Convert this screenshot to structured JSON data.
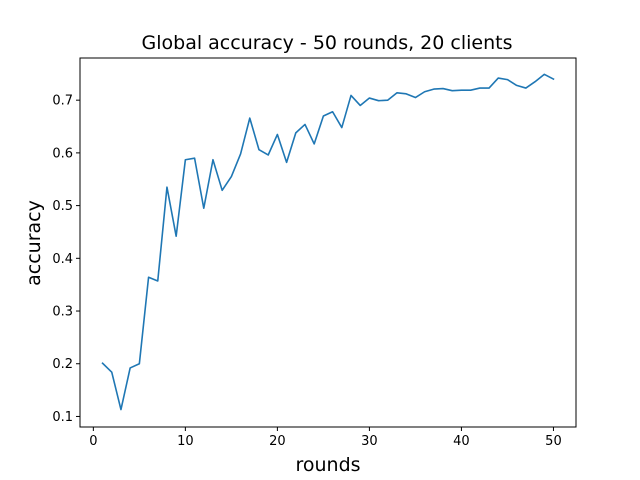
{
  "chart_data": {
    "type": "line",
    "title": "Global accuracy - 50 rounds, 20 clients",
    "xlabel": "rounds",
    "ylabel": "accuracy",
    "xlim": [
      -1.45,
      52.45
    ],
    "ylim": [
      0.08,
      0.78
    ],
    "xticks": [
      0,
      10,
      20,
      30,
      40,
      50
    ],
    "xtick_labels": [
      "0",
      "10",
      "20",
      "30",
      "40",
      "50"
    ],
    "yticks": [
      0.1,
      0.2,
      0.3,
      0.4,
      0.5,
      0.6,
      0.7
    ],
    "ytick_labels": [
      "0.1",
      "0.2",
      "0.3",
      "0.4",
      "0.5",
      "0.6",
      "0.7"
    ],
    "grid": false,
    "legend": "none",
    "line_color": "#1f77b4",
    "series": [
      {
        "x": [
          1,
          2,
          3,
          4,
          5,
          6,
          7,
          8,
          9,
          10,
          11,
          12,
          13,
          14,
          15,
          16,
          17,
          18,
          19,
          20,
          21,
          22,
          23,
          24,
          25,
          26,
          27,
          28,
          29,
          30,
          31,
          32,
          33,
          34,
          35,
          36,
          37,
          38,
          39,
          40,
          41,
          42,
          43,
          44,
          45,
          46,
          47,
          48,
          49,
          50
        ],
        "values": [
          0.201,
          0.184,
          0.113,
          0.192,
          0.2,
          0.364,
          0.357,
          0.535,
          0.442,
          0.587,
          0.59,
          0.495,
          0.587,
          0.529,
          0.555,
          0.598,
          0.666,
          0.606,
          0.596,
          0.635,
          0.582,
          0.638,
          0.654,
          0.617,
          0.67,
          0.678,
          0.648,
          0.709,
          0.69,
          0.704,
          0.699,
          0.7,
          0.714,
          0.712,
          0.705,
          0.716,
          0.721,
          0.722,
          0.718,
          0.719,
          0.719,
          0.723,
          0.723,
          0.742,
          0.739,
          0.728,
          0.723,
          0.735,
          0.749,
          0.74
        ]
      }
    ]
  }
}
